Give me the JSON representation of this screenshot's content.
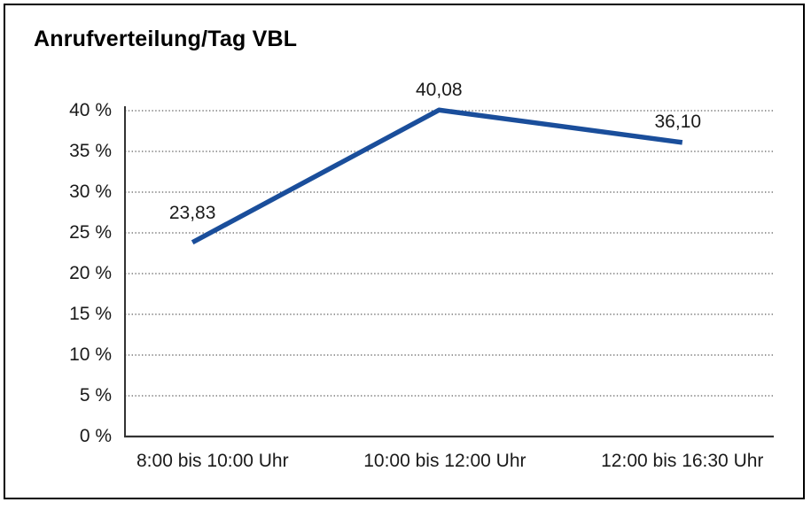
{
  "window": {
    "background": "#ffffff",
    "border_color": "#000000"
  },
  "chart_data": {
    "type": "line",
    "title": "Anrufverteilung/Tag VBL",
    "categories": [
      "8:00 bis 10:00 Uhr",
      "10:00 bis 12:00 Uhr",
      "12:00 bis 16:30 Uhr"
    ],
    "series": [
      {
        "name": "Anrufverteilung/Tag VBL",
        "values": [
          23.83,
          40.08,
          36.1
        ]
      }
    ],
    "data_labels": [
      "23,83",
      "40,08",
      "36,10"
    ],
    "xlabel": "",
    "ylabel": "",
    "ylim": [
      0,
      40
    ],
    "y_ticks": [
      0,
      5,
      10,
      15,
      20,
      25,
      30,
      35,
      40
    ],
    "y_tick_labels": [
      "0 %",
      "5 %",
      "10 %",
      "15 %",
      "20 %",
      "25 %",
      "30 %",
      "35 %",
      "40 %"
    ],
    "grid": "horizontal-dotted",
    "legend_position": "none",
    "colors": {
      "line": "#1a4e9b",
      "axis": "#333333",
      "grid": "#5f5f5f",
      "text": "#1a1a1a"
    }
  }
}
